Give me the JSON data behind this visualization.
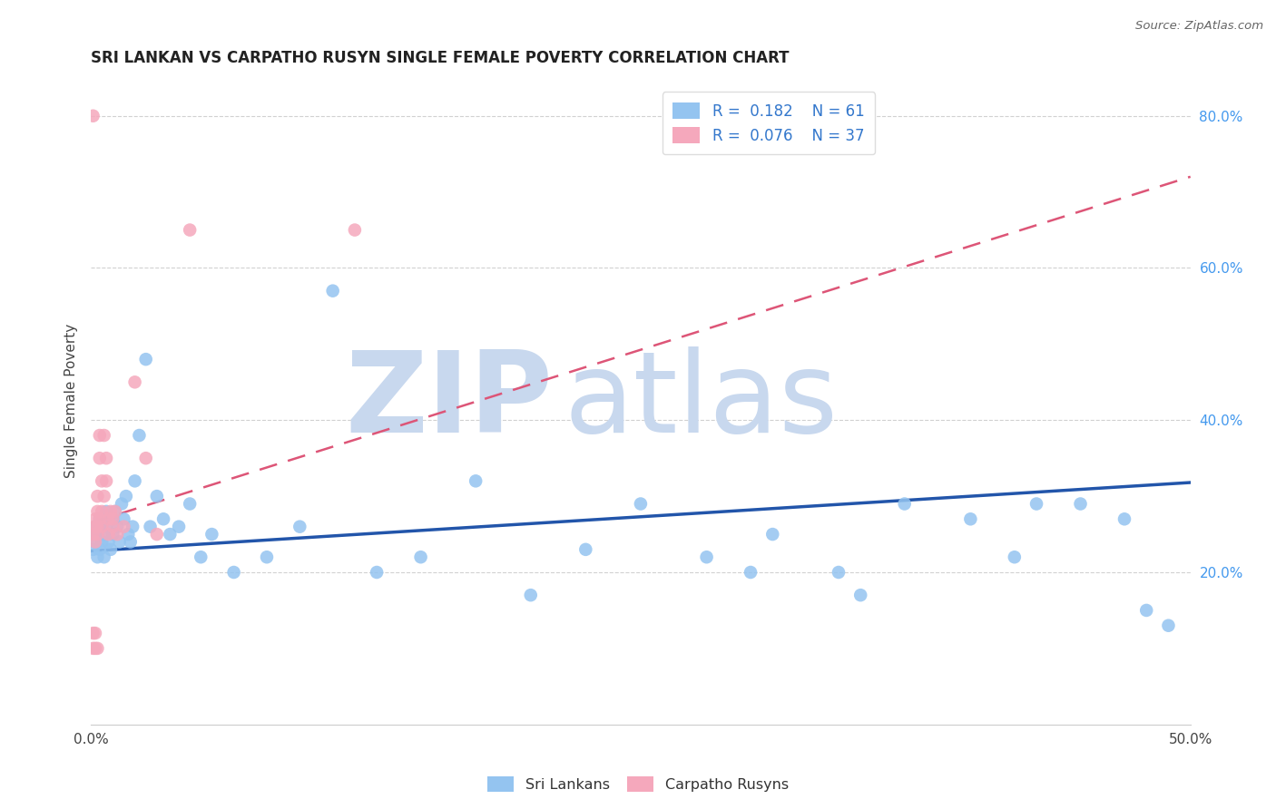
{
  "title": "SRI LANKAN VS CARPATHO RUSYN SINGLE FEMALE POVERTY CORRELATION CHART",
  "source": "Source: ZipAtlas.com",
  "ylabel_label": "Single Female Poverty",
  "x_min": 0.0,
  "x_max": 0.5,
  "y_min": 0.0,
  "y_max": 0.85,
  "y_ticks": [
    0.2,
    0.4,
    0.6,
    0.8
  ],
  "y_tick_labels": [
    "20.0%",
    "40.0%",
    "60.0%",
    "80.0%"
  ],
  "sri_lankan_color": "#94C4F0",
  "carpatho_color": "#F5A8BC",
  "sri_lankan_line_color": "#2255AA",
  "carpatho_line_color": "#DD5577",
  "sri_lankan_R": 0.182,
  "sri_lankan_N": 61,
  "carpatho_R": 0.076,
  "carpatho_N": 37,
  "watermark_zip": "ZIP",
  "watermark_atlas": "atlas",
  "watermark_color": "#C8D8EE",
  "legend_color": "#3377CC",
  "background_color": "#FFFFFF",
  "grid_color": "#CCCCCC",
  "sri_lankans_x": [
    0.001,
    0.001,
    0.002,
    0.002,
    0.003,
    0.003,
    0.004,
    0.004,
    0.005,
    0.005,
    0.006,
    0.006,
    0.007,
    0.007,
    0.008,
    0.009,
    0.01,
    0.01,
    0.011,
    0.012,
    0.013,
    0.014,
    0.015,
    0.016,
    0.017,
    0.018,
    0.019,
    0.02,
    0.022,
    0.025,
    0.027,
    0.03,
    0.033,
    0.036,
    0.04,
    0.045,
    0.05,
    0.055,
    0.065,
    0.08,
    0.095,
    0.11,
    0.13,
    0.15,
    0.175,
    0.2,
    0.225,
    0.25,
    0.28,
    0.31,
    0.34,
    0.37,
    0.4,
    0.42,
    0.45,
    0.47,
    0.48,
    0.49,
    0.3,
    0.35,
    0.43
  ],
  "sri_lankans_y": [
    0.25,
    0.23,
    0.24,
    0.26,
    0.22,
    0.25,
    0.23,
    0.27,
    0.24,
    0.26,
    0.25,
    0.22,
    0.26,
    0.28,
    0.24,
    0.23,
    0.27,
    0.25,
    0.28,
    0.26,
    0.24,
    0.29,
    0.27,
    0.3,
    0.25,
    0.24,
    0.26,
    0.32,
    0.38,
    0.48,
    0.26,
    0.3,
    0.27,
    0.25,
    0.26,
    0.29,
    0.22,
    0.25,
    0.2,
    0.22,
    0.26,
    0.57,
    0.2,
    0.22,
    0.32,
    0.17,
    0.23,
    0.29,
    0.22,
    0.25,
    0.2,
    0.29,
    0.27,
    0.22,
    0.29,
    0.27,
    0.15,
    0.13,
    0.2,
    0.17,
    0.29
  ],
  "carpatho_x": [
    0.001,
    0.001,
    0.001,
    0.002,
    0.002,
    0.002,
    0.003,
    0.003,
    0.003,
    0.003,
    0.004,
    0.004,
    0.004,
    0.005,
    0.005,
    0.005,
    0.006,
    0.006,
    0.007,
    0.007,
    0.008,
    0.008,
    0.009,
    0.01,
    0.01,
    0.011,
    0.012,
    0.015,
    0.02,
    0.025,
    0.03,
    0.045,
    0.001,
    0.002,
    0.003,
    0.12,
    0.002
  ],
  "carpatho_y": [
    0.8,
    0.25,
    0.12,
    0.27,
    0.26,
    0.24,
    0.3,
    0.28,
    0.26,
    0.25,
    0.38,
    0.35,
    0.27,
    0.32,
    0.28,
    0.26,
    0.38,
    0.3,
    0.35,
    0.32,
    0.27,
    0.25,
    0.28,
    0.27,
    0.26,
    0.28,
    0.25,
    0.26,
    0.45,
    0.35,
    0.25,
    0.65,
    0.1,
    0.1,
    0.1,
    0.65,
    0.12
  ],
  "sl_line_x0": 0.0,
  "sl_line_x1": 0.5,
  "sl_line_y0": 0.228,
  "sl_line_y1": 0.318,
  "cr_line_x0": 0.0,
  "cr_line_x1": 0.5,
  "cr_line_y0": 0.265,
  "cr_line_y1": 0.72
}
